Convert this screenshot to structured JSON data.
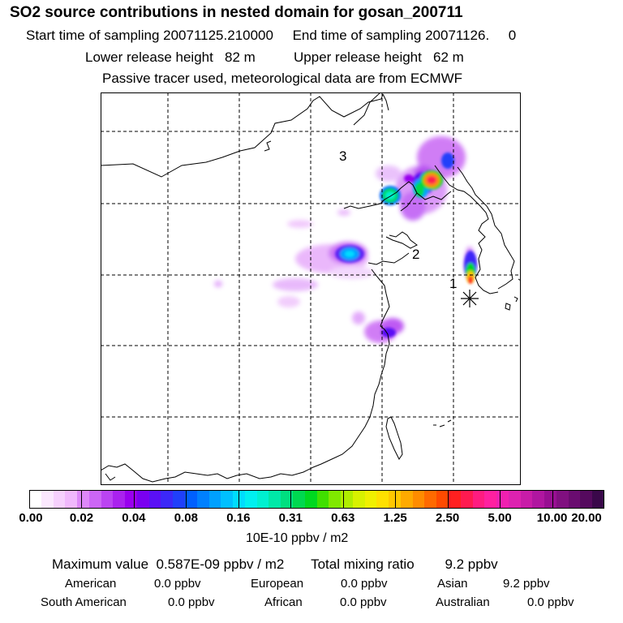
{
  "header": {
    "title": "SO2 source contributions in nested domain for gosan_200711",
    "start_label": "Start time of sampling",
    "start_value": "20071125.210000",
    "end_label": "End time of sampling",
    "end_value": "20071126.     0",
    "lower_label": "Lower release height",
    "lower_value": "82 m",
    "upper_label": "Upper release height",
    "upper_value": "62 m",
    "tracer_note": "Passive tracer used, meteorological data are from ECMWF"
  },
  "map": {
    "region_labels": [
      "1",
      "2",
      "3"
    ],
    "receptor_marker": "asterisk-icon",
    "colors": {
      "grid": "#000000",
      "coast": "#000000"
    }
  },
  "colorbar": {
    "ticks": [
      "0.00",
      "0.02",
      "0.04",
      "0.08",
      "0.16",
      "0.31",
      "0.63",
      "1.25",
      "2.50",
      "5.00",
      "10.00",
      "20.00"
    ],
    "colors": [
      "#ffffff",
      "#fbe8fe",
      "#f6d0fd",
      "#f0b8fc",
      "#dd88f8",
      "#cc66f5",
      "#bb44f2",
      "#aa22ee",
      "#9900ee",
      "#7a00f0",
      "#5a10f5",
      "#3c28f8",
      "#2040fa",
      "#0060ff",
      "#0080ff",
      "#00a0ff",
      "#00c0ff",
      "#00dcff",
      "#00f0f0",
      "#00f0d0",
      "#00e8a8",
      "#00e080",
      "#00d850",
      "#00d820",
      "#40e000",
      "#80e800",
      "#b0ee00",
      "#d8f200",
      "#f0f000",
      "#ffe000",
      "#ffc800",
      "#ffaa00",
      "#ff8c00",
      "#ff6a00",
      "#ff4a00",
      "#ff2020",
      "#ff1a50",
      "#ff1c80",
      "#ff20a0",
      "#f020b0",
      "#dd22b0",
      "#c81ca8",
      "#b016a0",
      "#980f92",
      "#801080",
      "#6a0c70",
      "#550a5e",
      "#3a084a"
    ],
    "unit": "10E-10 ppbv / m2"
  },
  "summary": {
    "max_label": "Maximum value",
    "max_value": "0.587E-09 ppbv / m2",
    "total_label": "Total mixing ratio",
    "total_value": "9.2 ppbv",
    "sources": [
      {
        "name": "American",
        "value": "0.0 ppbv"
      },
      {
        "name": "European",
        "value": "0.0 ppbv"
      },
      {
        "name": "Asian",
        "value": "9.2 ppbv"
      },
      {
        "name": "South American",
        "value": "0.0 ppbv"
      },
      {
        "name": "African",
        "value": "0.0 ppbv"
      },
      {
        "name": "Australian",
        "value": "0.0 ppbv"
      }
    ]
  }
}
